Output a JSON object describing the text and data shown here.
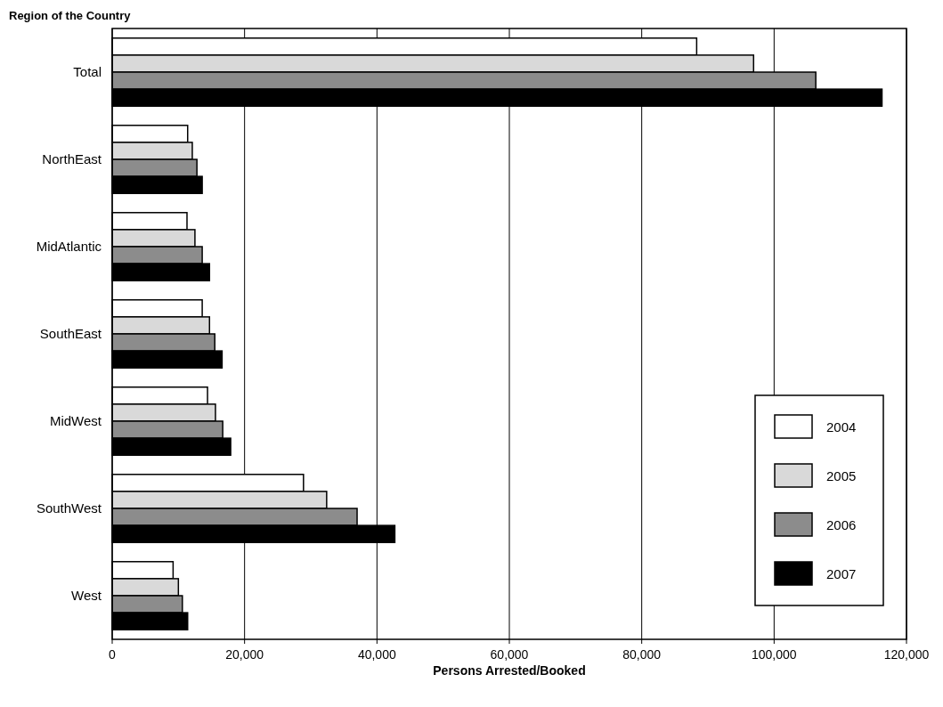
{
  "chart_data": {
    "type": "bar",
    "orientation": "horizontal",
    "ylabel": "Region of the Country",
    "xlabel": "Persons Arrested/Booked",
    "categories": [
      "Total",
      "NorthEast",
      "MidAtlantic",
      "SouthEast",
      "MidWest",
      "SouthWest",
      "West"
    ],
    "series": [
      {
        "name": "2004",
        "color": "#ffffff",
        "values": [
          88300,
          11400,
          11300,
          13600,
          14400,
          28900,
          9200
        ]
      },
      {
        "name": "2005",
        "color": "#d9d9d9",
        "values": [
          96900,
          12100,
          12500,
          14700,
          15600,
          32400,
          10000
        ]
      },
      {
        "name": "2006",
        "color": "#8c8c8c",
        "values": [
          106300,
          12800,
          13600,
          15500,
          16700,
          37000,
          10600
        ]
      },
      {
        "name": "2007",
        "color": "#000000",
        "values": [
          116300,
          13600,
          14700,
          16600,
          17900,
          42700,
          11400
        ]
      }
    ],
    "xlim": [
      0,
      120000
    ],
    "xticks": [
      {
        "value": 0,
        "label": "0"
      },
      {
        "value": 20000,
        "label": "20,000"
      },
      {
        "value": 40000,
        "label": "40,000"
      },
      {
        "value": 60000,
        "label": "60,000"
      },
      {
        "value": 80000,
        "label": "80,000"
      },
      {
        "value": 100000,
        "label": "100,000"
      },
      {
        "value": 120000,
        "label": "120,000"
      }
    ],
    "grid": "x",
    "legend": "bottom right"
  }
}
